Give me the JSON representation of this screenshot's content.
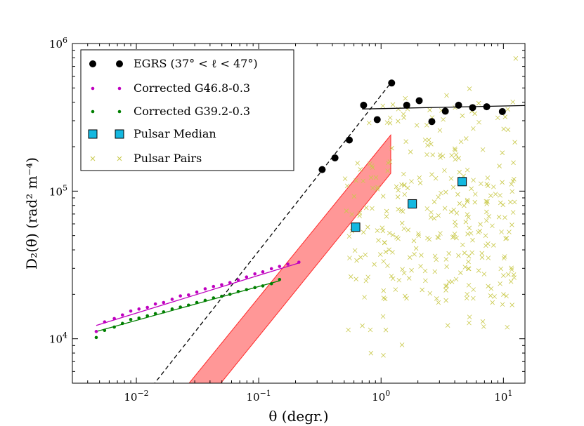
{
  "chart_data": {
    "type": "scatter",
    "x_scale": "log",
    "y_scale": "log",
    "xlim": [
      0.003,
      15
    ],
    "ylim": [
      5000,
      1000000
    ],
    "xlabel": "θ (degr.)",
    "ylabel": "D₂(θ) (rad² m⁻⁴)",
    "x_ticks": [
      {
        "value": 0.01,
        "base": "10",
        "exp": "−2"
      },
      {
        "value": 0.1,
        "base": "10",
        "exp": "−1"
      },
      {
        "value": 1,
        "base": "10",
        "exp": "0"
      },
      {
        "value": 10,
        "base": "10",
        "exp": "1"
      }
    ],
    "y_ticks": [
      {
        "value": 10000,
        "base": "10",
        "exp": "4"
      },
      {
        "value": 100000,
        "base": "10",
        "exp": "5"
      },
      {
        "value": 1000000,
        "base": "10",
        "exp": "6"
      }
    ],
    "legend_position": "top-left",
    "series": [
      {
        "name": "EGRS (37° < ℓ < 47°)",
        "color": "#000000",
        "marker": "circle",
        "x": [
          0.33,
          0.42,
          0.55,
          0.93,
          1.22,
          0.72,
          1.62,
          2.05,
          2.6,
          3.35,
          4.3,
          5.6,
          7.3,
          9.8
        ],
        "y": [
          140000,
          168000,
          222000,
          305000,
          540000,
          382000,
          382000,
          410000,
          296000,
          348000,
          382000,
          368000,
          373000,
          346000
        ]
      },
      {
        "name": "Corrected G46.8-0.3",
        "color": "#bf00bf",
        "marker": "small-dot",
        "x": [
          0.0047,
          0.0055,
          0.0066,
          0.0077,
          0.009,
          0.0105,
          0.0123,
          0.0143,
          0.0167,
          0.0196,
          0.0229,
          0.0267,
          0.0312,
          0.0365,
          0.0427,
          0.0498,
          0.0582,
          0.068,
          0.0795,
          0.093,
          0.108,
          0.127,
          0.148,
          0.173,
          0.213
        ],
        "y": [
          11200,
          13000,
          13700,
          14500,
          15400,
          15900,
          16300,
          17200,
          17600,
          18500,
          19500,
          19800,
          20700,
          21800,
          22600,
          23200,
          24000,
          25000,
          26200,
          27500,
          28400,
          29800,
          30900,
          32000,
          33000
        ]
      },
      {
        "name": "Corrected G39.2-0.3",
        "color": "#007f00",
        "marker": "small-dot",
        "x": [
          0.0047,
          0.0055,
          0.0066,
          0.0077,
          0.009,
          0.0105,
          0.0123,
          0.0143,
          0.0167,
          0.0196,
          0.0229,
          0.0267,
          0.0312,
          0.0365,
          0.0427,
          0.0498,
          0.0582,
          0.068,
          0.0795,
          0.093,
          0.108,
          0.127,
          0.148
        ],
        "y": [
          10200,
          11400,
          12000,
          12700,
          13500,
          13800,
          14300,
          14800,
          15200,
          15900,
          16400,
          16900,
          17600,
          18200,
          18900,
          19400,
          20000,
          20900,
          21500,
          22200,
          22800,
          23600,
          25200
        ]
      },
      {
        "name": "Pulsar Median",
        "color": "#14b8e0",
        "marker": "square",
        "x": [
          0.62,
          1.8,
          4.6
        ],
        "y": [
          57000,
          82000,
          116000
        ]
      },
      {
        "name": "Pulsar Pairs",
        "color": "#c9c94a",
        "marker": "x",
        "x_range": [
          0.5,
          13
        ],
        "y_range": [
          5000,
          1000000
        ],
        "note": "scattered cloud of many points"
      }
    ],
    "lines": [
      {
        "name": "EGRS steep fit",
        "style": "dashed",
        "color": "#000000",
        "x": [
          0.0125,
          1.2
        ],
        "y": [
          4400,
          540000
        ]
      },
      {
        "name": "EGRS flat fit",
        "style": "solid",
        "color": "#000000",
        "x": [
          0.7,
          15
        ],
        "y": [
          360000,
          380000
        ]
      },
      {
        "name": "G46.8 fit",
        "style": "solid",
        "color": "#bf00bf",
        "x": [
          0.0047,
          0.213
        ],
        "y": [
          12300,
          32600
        ]
      },
      {
        "name": "G39.2 fit",
        "style": "solid",
        "color": "#007f00",
        "x": [
          0.0047,
          0.148
        ],
        "y": [
          11200,
          24700
        ]
      }
    ],
    "band": {
      "color": "#ff6b6b",
      "polygon": [
        [
          0.027,
          5000
        ],
        [
          1.2,
          240000
        ],
        [
          1.2,
          132000
        ],
        [
          0.049,
          5000
        ]
      ]
    }
  }
}
